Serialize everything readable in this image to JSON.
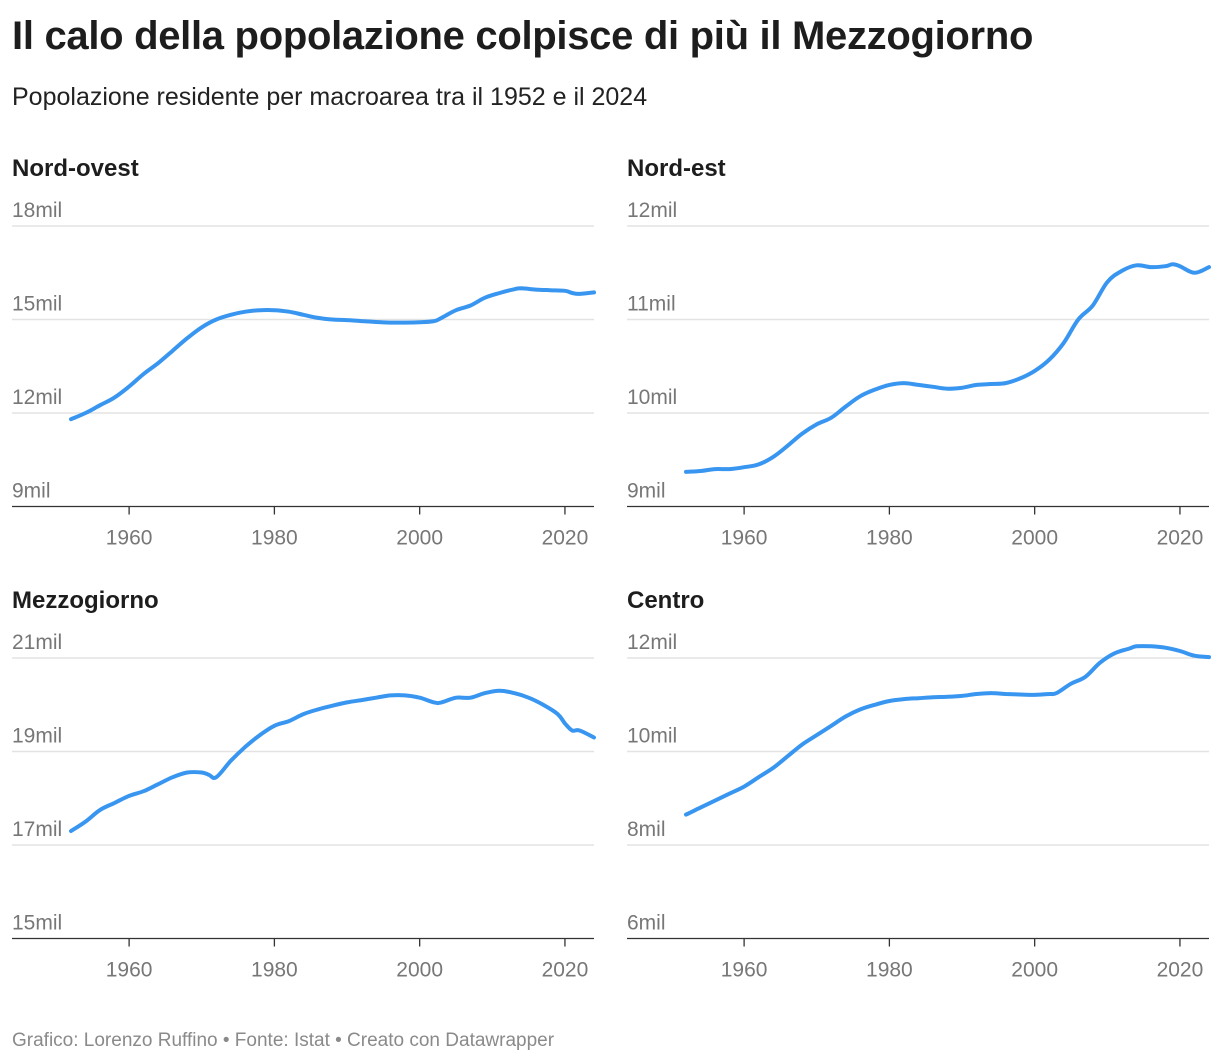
{
  "header": {
    "title": "Il calo della popolazione colpisce di più il Mezzogiorno",
    "subtitle": "Popolazione residente per macroarea tra il 1952 e il 2024"
  },
  "footer": {
    "text": "Grafico: Lorenzo Ruffino • Fonte: Istat • Creato con Datawrapper"
  },
  "colors": {
    "series": "#3996f0",
    "grid": "#e3e3e3",
    "axis": "#333333",
    "tick_text": "#777777"
  },
  "chart_data": [
    {
      "type": "line",
      "title": "Nord-ovest",
      "ylim": [
        9000000,
        18000000
      ],
      "yticks": [
        9000000,
        12000000,
        15000000,
        18000000
      ],
      "ytick_labels": [
        "9mil",
        "12mil",
        "15mil",
        "18mil"
      ],
      "xlim": [
        1952,
        2024
      ],
      "xticks": [
        1960,
        1980,
        2000,
        2020
      ],
      "xtick_labels": [
        "1960",
        "1980",
        "2000",
        "2020"
      ],
      "x": [
        1952,
        1954,
        1956,
        1958,
        1960,
        1962,
        1964,
        1966,
        1968,
        1970,
        1972,
        1974,
        1976,
        1978,
        1980,
        1982,
        1984,
        1986,
        1988,
        1990,
        1992,
        1994,
        1996,
        1998,
        2000,
        2002,
        2003,
        2005,
        2007,
        2009,
        2011,
        2013,
        2014,
        2016,
        2018,
        2020,
        2021,
        2022,
        2024
      ],
      "y": [
        11800000,
        12000000,
        12250000,
        12500000,
        12850000,
        13250000,
        13600000,
        14000000,
        14400000,
        14750000,
        15000000,
        15150000,
        15250000,
        15300000,
        15300000,
        15250000,
        15150000,
        15050000,
        15000000,
        14980000,
        14950000,
        14920000,
        14900000,
        14900000,
        14910000,
        14950000,
        15050000,
        15300000,
        15450000,
        15700000,
        15850000,
        15970000,
        16000000,
        15960000,
        15940000,
        15920000,
        15850000,
        15820000,
        15870000
      ],
      "grid": true
    },
    {
      "type": "line",
      "title": "Nord-est",
      "ylim": [
        9000000,
        12000000
      ],
      "yticks": [
        9000000,
        10000000,
        11000000,
        12000000
      ],
      "ytick_labels": [
        "9mil",
        "10mil",
        "11mil",
        "12mil"
      ],
      "xlim": [
        1952,
        2024
      ],
      "xticks": [
        1960,
        1980,
        2000,
        2020
      ],
      "xtick_labels": [
        "1960",
        "1980",
        "2000",
        "2020"
      ],
      "x": [
        1952,
        1954,
        1956,
        1958,
        1960,
        1962,
        1964,
        1966,
        1968,
        1970,
        1972,
        1974,
        1976,
        1978,
        1980,
        1982,
        1984,
        1986,
        1988,
        1990,
        1992,
        1994,
        1996,
        1998,
        2000,
        2002,
        2004,
        2006,
        2008,
        2010,
        2012,
        2014,
        2016,
        2018,
        2019,
        2020,
        2022,
        2024
      ],
      "y": [
        9370000,
        9380000,
        9400000,
        9400000,
        9420000,
        9450000,
        9530000,
        9650000,
        9780000,
        9880000,
        9950000,
        10070000,
        10180000,
        10250000,
        10300000,
        10320000,
        10300000,
        10280000,
        10260000,
        10270000,
        10300000,
        10310000,
        10320000,
        10370000,
        10450000,
        10570000,
        10750000,
        11000000,
        11150000,
        11400000,
        11520000,
        11580000,
        11560000,
        11570000,
        11590000,
        11570000,
        11500000,
        11560000
      ],
      "grid": true
    },
    {
      "type": "line",
      "title": "Mezzogiorno",
      "ylim": [
        15000000,
        21000000
      ],
      "yticks": [
        15000000,
        17000000,
        19000000,
        21000000
      ],
      "ytick_labels": [
        "15mil",
        "17mil",
        "19mil",
        "21mil"
      ],
      "xlim": [
        1952,
        2024
      ],
      "xticks": [
        1960,
        1980,
        2000,
        2020
      ],
      "xtick_labels": [
        "1960",
        "1980",
        "2000",
        "2020"
      ],
      "x": [
        1952,
        1954,
        1956,
        1958,
        1960,
        1962,
        1964,
        1966,
        1968,
        1970,
        1971,
        1972,
        1974,
        1976,
        1978,
        1980,
        1982,
        1984,
        1986,
        1988,
        1990,
        1992,
        1994,
        1996,
        1998,
        2000,
        2002,
        2003,
        2005,
        2007,
        2009,
        2011,
        2013,
        2015,
        2017,
        2019,
        2020,
        2021,
        2022,
        2024
      ],
      "y": [
        17300000,
        17500000,
        17750000,
        17900000,
        18050000,
        18150000,
        18300000,
        18450000,
        18550000,
        18550000,
        18500000,
        18450000,
        18800000,
        19100000,
        19350000,
        19550000,
        19650000,
        19800000,
        19900000,
        19980000,
        20050000,
        20100000,
        20150000,
        20200000,
        20200000,
        20150000,
        20050000,
        20050000,
        20150000,
        20150000,
        20250000,
        20300000,
        20250000,
        20150000,
        20000000,
        19800000,
        19600000,
        19450000,
        19450000,
        19300000
      ],
      "grid": true
    },
    {
      "type": "line",
      "title": "Centro",
      "ylim": [
        6000000,
        12000000
      ],
      "yticks": [
        6000000,
        8000000,
        10000000,
        12000000
      ],
      "ytick_labels": [
        "6mil",
        "8mil",
        "10mil",
        "12mil"
      ],
      "xlim": [
        1952,
        2024
      ],
      "xticks": [
        1960,
        1980,
        2000,
        2020
      ],
      "xtick_labels": [
        "1960",
        "1980",
        "2000",
        "2020"
      ],
      "x": [
        1952,
        1954,
        1956,
        1958,
        1960,
        1962,
        1964,
        1966,
        1968,
        1970,
        1972,
        1974,
        1976,
        1978,
        1980,
        1982,
        1984,
        1986,
        1988,
        1990,
        1992,
        1994,
        1996,
        1998,
        2000,
        2002,
        2003,
        2005,
        2007,
        2009,
        2011,
        2013,
        2014,
        2016,
        2018,
        2020,
        2022,
        2024
      ],
      "y": [
        8650000,
        8800000,
        8950000,
        9100000,
        9250000,
        9450000,
        9650000,
        9900000,
        10150000,
        10350000,
        10550000,
        10750000,
        10900000,
        11000000,
        11080000,
        11120000,
        11140000,
        11160000,
        11170000,
        11190000,
        11230000,
        11250000,
        11230000,
        11220000,
        11210000,
        11230000,
        11250000,
        11450000,
        11600000,
        11900000,
        12100000,
        12200000,
        12250000,
        12250000,
        12220000,
        12150000,
        12050000,
        12020000
      ],
      "grid": true
    }
  ]
}
